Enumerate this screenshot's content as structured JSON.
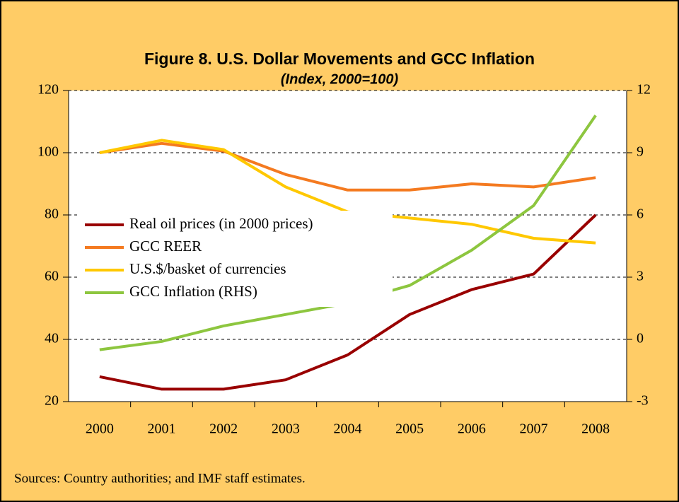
{
  "chart_data": {
    "type": "line",
    "title": "Figure 8. U.S. Dollar Movements and GCC Inflation",
    "subtitle": "(Index, 2000=100)",
    "source": "Sources: Country authorities; and IMF staff estimates.",
    "categories": [
      "2000",
      "2001",
      "2002",
      "2003",
      "2004",
      "2005",
      "2006",
      "2007",
      "2008"
    ],
    "ylim": [
      20,
      120
    ],
    "yticks": [
      20,
      40,
      60,
      80,
      100,
      120
    ],
    "y2lim": [
      -3,
      12
    ],
    "y2ticks": [
      -3,
      0,
      3,
      6,
      9,
      12
    ],
    "grid": true,
    "legend": "left",
    "series": [
      {
        "name": "Real oil prices (in 2000 prices)",
        "color": "#990000",
        "values": [
          28,
          24,
          24,
          27,
          35,
          48,
          56,
          61,
          80
        ]
      },
      {
        "name": "GCC REER",
        "color": "#F47A20",
        "values": [
          100,
          103,
          100.5,
          93,
          88,
          88,
          90,
          89,
          92
        ]
      },
      {
        "name": "U.S.$/basket of currencies",
        "color": "#FFC800",
        "values": [
          100,
          104,
          101,
          89,
          81,
          79,
          77,
          72.5,
          71
        ]
      },
      {
        "name": "GCC Inflation (RHS)",
        "color": "#8DC63F",
        "axis": "y2",
        "values": [
          -0.5,
          -0.1,
          0.65,
          1.2,
          1.75,
          2.6,
          4.3,
          6.45,
          10.8
        ]
      }
    ]
  }
}
